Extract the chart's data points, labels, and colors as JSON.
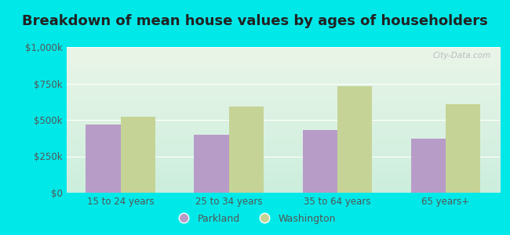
{
  "title": "Breakdown of mean house values by ages of householders",
  "categories": [
    "15 to 24 years",
    "25 to 34 years",
    "35 to 64 years",
    "65 years+"
  ],
  "parkland_values": [
    470000,
    400000,
    430000,
    370000
  ],
  "washington_values": [
    520000,
    590000,
    730000,
    610000
  ],
  "parkland_color": "#b89cc8",
  "washington_color": "#c5d496",
  "background_outer": "#00e8e8",
  "ylim": [
    0,
    1000000
  ],
  "yticks": [
    0,
    250000,
    500000,
    750000,
    1000000
  ],
  "ytick_labels": [
    "$0",
    "$250k",
    "$500k",
    "$750k",
    "$1,000k"
  ],
  "legend_labels": [
    "Parkland",
    "Washington"
  ],
  "title_fontsize": 13,
  "title_color": "#222222",
  "tick_color": "#555555",
  "watermark_text": "City-Data.com",
  "bg_top": "#eaf5e8",
  "bg_bottom": "#cceedd",
  "bar_width": 0.32
}
